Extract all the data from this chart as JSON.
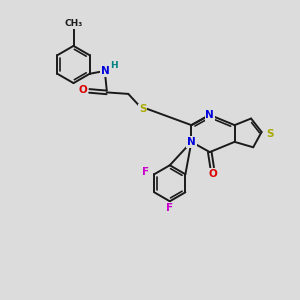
{
  "bg_color": "#dcdcdc",
  "bond_color": "#1a1a1a",
  "bond_lw": 1.4,
  "atom_colors": {
    "N": "#0000dd",
    "O": "#dd0000",
    "S": "#aaaa00",
    "F": "#cc00cc",
    "H": "#008080",
    "C": "#1a1a1a"
  },
  "fs": 7.5,
  "fs_small": 6.5
}
